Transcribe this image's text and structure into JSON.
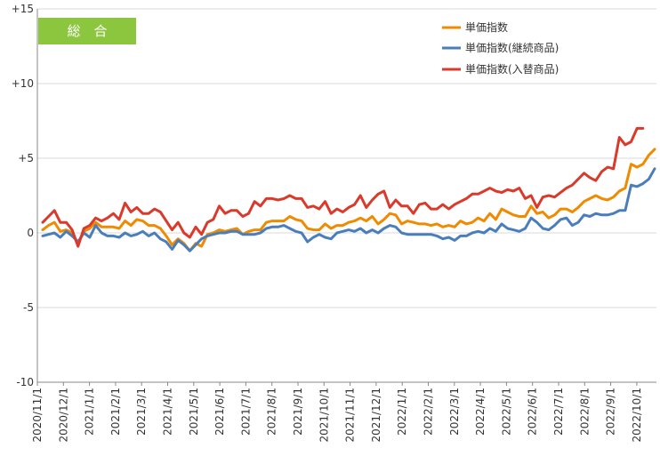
{
  "chart_data": {
    "type": "line",
    "title": "総　合",
    "xlabel": "",
    "ylabel": "",
    "ylim": [
      -10,
      15
    ],
    "yticks": [
      {
        "value": 15,
        "label": "+15"
      },
      {
        "value": 10,
        "label": "+10"
      },
      {
        "value": 5,
        "label": "+5"
      },
      {
        "value": 0,
        "label": "0"
      },
      {
        "value": -5,
        "label": "-5"
      },
      {
        "value": -10,
        "label": "-10"
      }
    ],
    "x_tick_labels": [
      "2020/11/1",
      "2020/12/1",
      "2021/1/1",
      "2021/2/1",
      "2021/3/1",
      "2021/4/1",
      "2021/5/1",
      "2021/6/1",
      "2021/7/1",
      "2021/8/1",
      "2021/9/1",
      "2021/10/1",
      "2021/11/1",
      "2021/12/1",
      "2022/1/1",
      "2022/2/1",
      "2022/3/1",
      "2022/4/1",
      "2022/5/1",
      "2022/6/1",
      "2022/7/1",
      "2022/8/1",
      "2022/9/1",
      "2022/10/1"
    ],
    "grid": "horizontal",
    "legend_position": "top-right",
    "series": [
      {
        "name": "単価指数",
        "color": "#f08a00",
        "values": [
          0.2,
          0.5,
          0.7,
          0.1,
          0.2,
          0.0,
          -0.7,
          0.1,
          0.3,
          0.7,
          0.4,
          0.4,
          0.4,
          0.3,
          0.8,
          0.5,
          0.9,
          0.8,
          0.5,
          0.5,
          0.3,
          -0.2,
          -0.8,
          -0.4,
          -0.7,
          -1.2,
          -0.7,
          -0.9,
          -0.1,
          0.0,
          0.2,
          0.1,
          0.2,
          0.3,
          -0.1,
          0.1,
          0.2,
          0.2,
          0.7,
          0.8,
          0.8,
          0.8,
          1.1,
          0.9,
          0.8,
          0.3,
          0.2,
          0.2,
          0.6,
          0.3,
          0.5,
          0.5,
          0.7,
          0.8,
          1.0,
          0.8,
          1.1,
          0.6,
          0.9,
          1.3,
          1.2,
          0.6,
          0.8,
          0.7,
          0.6,
          0.6,
          0.5,
          0.6,
          0.4,
          0.5,
          0.4,
          0.8,
          0.6,
          0.7,
          1.0,
          0.8,
          1.3,
          0.9,
          1.6,
          1.4,
          1.2,
          1.1,
          1.1,
          1.8,
          1.3,
          1.4,
          1.0,
          1.2,
          1.6,
          1.6,
          1.4,
          1.7,
          2.1,
          2.3,
          2.5,
          2.3,
          2.2,
          2.4,
          2.8,
          3.0,
          4.6,
          4.4,
          4.6,
          5.2,
          5.6
        ]
      },
      {
        "name": "単価指数(継続商品)",
        "color": "#4a7ebb",
        "values": [
          -0.2,
          -0.1,
          0.0,
          -0.3,
          0.1,
          -0.2,
          -0.6,
          0.0,
          -0.3,
          0.5,
          0.0,
          -0.2,
          -0.2,
          -0.3,
          0.0,
          -0.2,
          -0.1,
          0.1,
          -0.2,
          0.0,
          -0.4,
          -0.6,
          -1.1,
          -0.5,
          -0.8,
          -1.2,
          -0.8,
          -0.4,
          -0.2,
          -0.1,
          0.0,
          0.0,
          0.1,
          0.1,
          -0.1,
          -0.1,
          -0.1,
          0.0,
          0.3,
          0.4,
          0.4,
          0.5,
          0.3,
          0.1,
          0.0,
          -0.6,
          -0.3,
          -0.1,
          -0.3,
          -0.4,
          0.0,
          0.1,
          0.2,
          0.1,
          0.3,
          0.0,
          0.2,
          0.0,
          0.3,
          0.5,
          0.4,
          0.0,
          -0.1,
          -0.1,
          -0.1,
          -0.1,
          -0.1,
          -0.2,
          -0.4,
          -0.3,
          -0.5,
          -0.2,
          -0.2,
          0.0,
          0.1,
          0.0,
          0.3,
          0.1,
          0.6,
          0.3,
          0.2,
          0.1,
          0.3,
          1.0,
          0.7,
          0.3,
          0.2,
          0.5,
          0.9,
          1.0,
          0.5,
          0.7,
          1.2,
          1.1,
          1.3,
          1.2,
          1.2,
          1.3,
          1.5,
          1.5,
          3.2,
          3.1,
          3.3,
          3.6,
          4.3
        ]
      },
      {
        "name": "単価指数(入替商品)",
        "color": "#d93a2b",
        "values": [
          0.7,
          1.1,
          1.5,
          0.7,
          0.7,
          0.2,
          -0.9,
          0.3,
          0.5,
          1.0,
          0.8,
          1.0,
          1.3,
          0.9,
          2.0,
          1.4,
          1.7,
          1.3,
          1.3,
          1.6,
          1.4,
          0.8,
          0.2,
          0.7,
          0.0,
          -0.3,
          0.4,
          -0.1,
          0.7,
          0.9,
          1.8,
          1.3,
          1.5,
          1.5,
          1.1,
          1.3,
          2.1,
          1.8,
          2.3,
          2.3,
          2.2,
          2.3,
          2.5,
          2.3,
          2.3,
          1.7,
          1.8,
          1.6,
          2.1,
          1.3,
          1.6,
          1.4,
          1.7,
          1.9,
          2.5,
          1.7,
          2.2,
          2.6,
          2.8,
          1.7,
          2.2,
          1.8,
          1.8,
          1.3,
          1.9,
          2.0,
          1.6,
          1.6,
          1.9,
          1.6,
          1.9,
          2.1,
          2.3,
          2.6,
          2.6,
          2.8,
          3.0,
          2.8,
          2.7,
          2.9,
          2.8,
          3.0,
          2.3,
          2.5,
          1.7,
          2.4,
          2.5,
          2.4,
          2.7,
          3.0,
          3.2,
          3.6,
          4.0,
          3.7,
          3.5,
          4.1,
          4.4,
          4.3,
          6.4,
          5.9,
          6.1,
          7.0,
          7.0
        ]
      }
    ]
  }
}
